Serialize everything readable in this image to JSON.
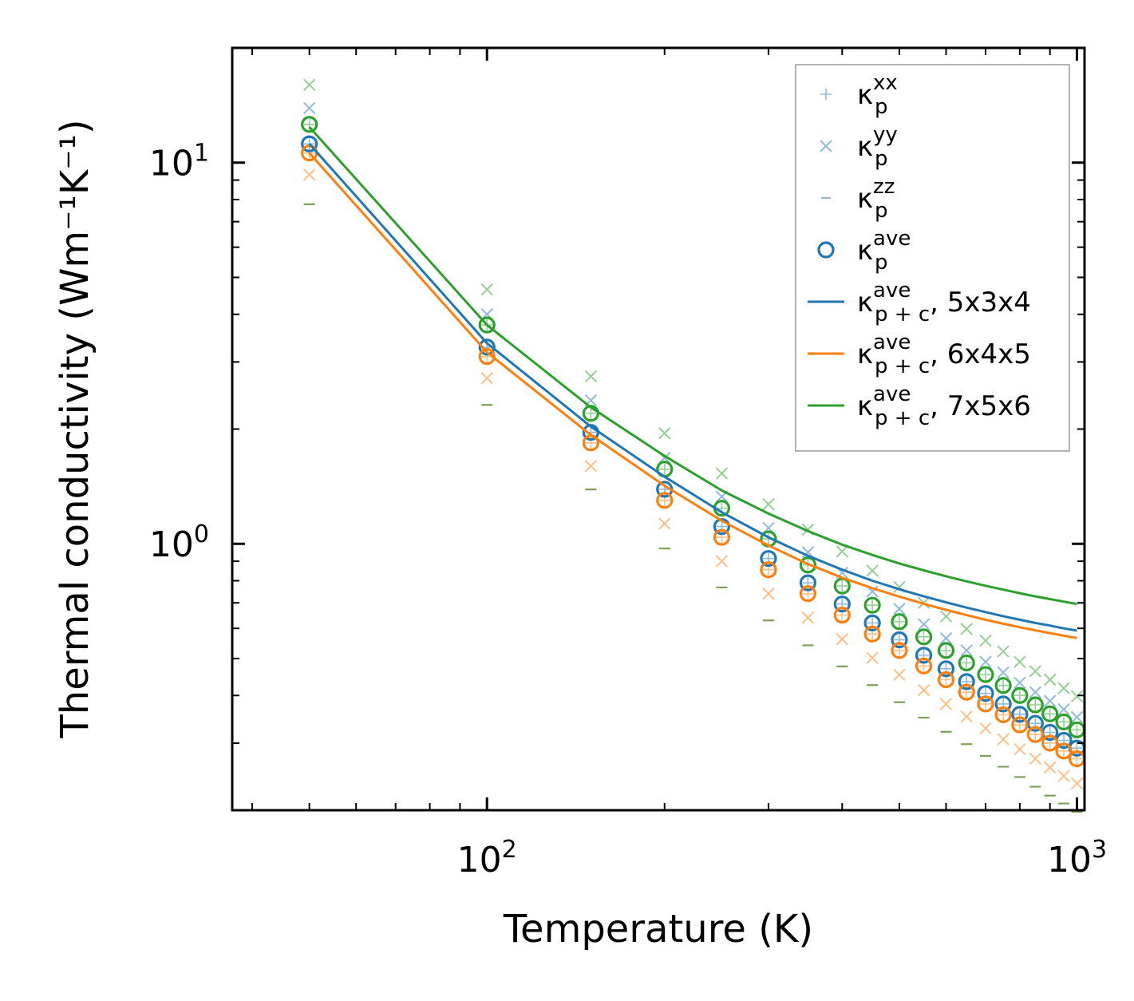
{
  "chart_data": {
    "type": "scatter",
    "title": "",
    "xlabel": "Temperature (K)",
    "ylabel": "Thermal conductivity (Wm⁻¹K⁻¹)",
    "xscale": "log",
    "yscale": "log",
    "xlim": [
      37,
      1030
    ],
    "ylim": [
      0.2,
      20
    ],
    "x_ticks": [
      {
        "value": 100,
        "base": "10",
        "exp": "2"
      },
      {
        "value": 1000,
        "base": "10",
        "exp": "3"
      }
    ],
    "y_ticks": [
      {
        "value": 1,
        "base": "10",
        "exp": "0"
      },
      {
        "value": 10,
        "base": "10",
        "exp": "1"
      }
    ],
    "x": [
      50,
      100,
      150,
      200,
      250,
      300,
      350,
      400,
      450,
      500,
      550,
      600,
      650,
      700,
      750,
      800,
      850,
      900,
      950,
      1000
    ],
    "legend_position": "upper right",
    "colors": {
      "5x3x4": "#1f77b4",
      "6x4x5": "#ff7f0e",
      "7x5x6": "#2ca02c"
    },
    "legend": [
      {
        "kind": "plus",
        "sym": "κ",
        "sub": "p",
        "sup": "xx",
        "suffix": ""
      },
      {
        "kind": "cross",
        "sym": "κ",
        "sub": "p",
        "sup": "yy",
        "suffix": ""
      },
      {
        "kind": "dash",
        "sym": "κ",
        "sub": "p",
        "sup": "zz",
        "suffix": ""
      },
      {
        "kind": "circle",
        "sym": "κ",
        "sub": "p",
        "sup": "ave",
        "suffix": ""
      },
      {
        "kind": "line",
        "color": "#1f77b4",
        "sym": "κ",
        "sub": "p + c",
        "sup": "ave",
        "suffix": ", 5x3x4"
      },
      {
        "kind": "line",
        "color": "#ff7f0e",
        "sym": "κ",
        "sub": "p + c",
        "sup": "ave",
        "suffix": ", 6x4x5"
      },
      {
        "kind": "line",
        "color": "#2ca02c",
        "sym": "κ",
        "sub": "p + c",
        "sup": "ave",
        "suffix": ", 7x5x6"
      }
    ],
    "series": [
      {
        "name": "5x3x4",
        "color": "#1f77b4",
        "kappa_p_xx": [
          11.2,
          3.28,
          1.96,
          1.39,
          1.11,
          0.915,
          0.79,
          0.695,
          0.62,
          0.56,
          0.51,
          0.47,
          0.435,
          0.405,
          0.38,
          0.357,
          0.338,
          0.32,
          0.305,
          0.291
        ],
        "kappa_p_yy": [
          13.9,
          4.0,
          2.38,
          1.68,
          1.33,
          1.1,
          0.95,
          0.84,
          0.75,
          0.675,
          0.615,
          0.565,
          0.525,
          0.49,
          0.46,
          0.432,
          0.408,
          0.387,
          0.368,
          0.351
        ],
        "kappa_p_zz": [
          8.4,
          2.5,
          1.5,
          1.05,
          0.83,
          0.68,
          0.585,
          0.515,
          0.46,
          0.415,
          0.378,
          0.347,
          0.322,
          0.3,
          0.281,
          0.264,
          0.249,
          0.236,
          0.225,
          0.214
        ],
        "kappa_p_ave": [
          11.2,
          3.28,
          1.96,
          1.39,
          1.11,
          0.915,
          0.79,
          0.695,
          0.62,
          0.56,
          0.51,
          0.47,
          0.435,
          0.405,
          0.38,
          0.357,
          0.338,
          0.32,
          0.305,
          0.291
        ],
        "kappa_pc_ave": [
          11.2,
          3.36,
          2.03,
          1.5,
          1.21,
          1.04,
          0.93,
          0.855,
          0.8,
          0.76,
          0.728,
          0.702,
          0.68,
          0.662,
          0.646,
          0.632,
          0.62,
          0.61,
          0.6,
          0.592
        ]
      },
      {
        "name": "6x4x5",
        "color": "#ff7f0e",
        "kappa_p_xx": [
          10.6,
          3.1,
          1.84,
          1.3,
          1.04,
          0.855,
          0.74,
          0.65,
          0.58,
          0.525,
          0.478,
          0.44,
          0.408,
          0.38,
          0.356,
          0.335,
          0.316,
          0.3,
          0.286,
          0.273
        ],
        "kappa_p_yy": [
          9.3,
          2.72,
          1.6,
          1.13,
          0.9,
          0.74,
          0.64,
          0.562,
          0.502,
          0.453,
          0.413,
          0.38,
          0.352,
          0.328,
          0.307,
          0.289,
          0.273,
          0.259,
          0.246,
          0.235
        ],
        "kappa_p_zz": [
          8.4,
          2.5,
          1.5,
          1.05,
          0.83,
          0.68,
          0.585,
          0.515,
          0.46,
          0.415,
          0.378,
          0.347,
          0.322,
          0.3,
          0.281,
          0.264,
          0.249,
          0.236,
          0.225,
          0.214
        ],
        "kappa_p_ave": [
          10.6,
          3.1,
          1.84,
          1.3,
          1.04,
          0.855,
          0.74,
          0.65,
          0.58,
          0.525,
          0.478,
          0.44,
          0.408,
          0.38,
          0.356,
          0.335,
          0.316,
          0.3,
          0.286,
          0.273
        ],
        "kappa_pc_ave": [
          10.6,
          3.18,
          1.93,
          1.42,
          1.15,
          0.99,
          0.885,
          0.815,
          0.765,
          0.727,
          0.696,
          0.671,
          0.65,
          0.632,
          0.617,
          0.604,
          0.593,
          0.583,
          0.574,
          0.566
        ]
      },
      {
        "name": "7x5x6",
        "color": "#2ca02c",
        "kappa_p_xx": [
          12.6,
          3.75,
          2.2,
          1.57,
          1.24,
          1.03,
          0.88,
          0.775,
          0.69,
          0.625,
          0.57,
          0.525,
          0.487,
          0.454,
          0.425,
          0.4,
          0.378,
          0.358,
          0.341,
          0.325
        ],
        "kappa_p_yy": [
          16.0,
          4.65,
          2.75,
          1.95,
          1.53,
          1.27,
          1.09,
          0.955,
          0.85,
          0.77,
          0.7,
          0.645,
          0.598,
          0.557,
          0.522,
          0.49,
          0.463,
          0.44,
          0.418,
          0.398
        ],
        "kappa_p_zz": [
          8.4,
          2.5,
          1.5,
          1.05,
          0.83,
          0.68,
          0.585,
          0.515,
          0.46,
          0.415,
          0.378,
          0.347,
          0.322,
          0.3,
          0.281,
          0.264,
          0.249,
          0.236,
          0.225,
          0.214
        ],
        "kappa_p_ave": [
          12.6,
          3.75,
          2.2,
          1.57,
          1.24,
          1.03,
          0.88,
          0.775,
          0.69,
          0.625,
          0.57,
          0.525,
          0.487,
          0.454,
          0.425,
          0.4,
          0.378,
          0.358,
          0.341,
          0.325
        ],
        "kappa_pc_ave": [
          12.4,
          3.75,
          2.28,
          1.7,
          1.38,
          1.2,
          1.08,
          0.995,
          0.935,
          0.888,
          0.852,
          0.822,
          0.797,
          0.776,
          0.758,
          0.742,
          0.728,
          0.716,
          0.705,
          0.695
        ]
      }
    ]
  }
}
